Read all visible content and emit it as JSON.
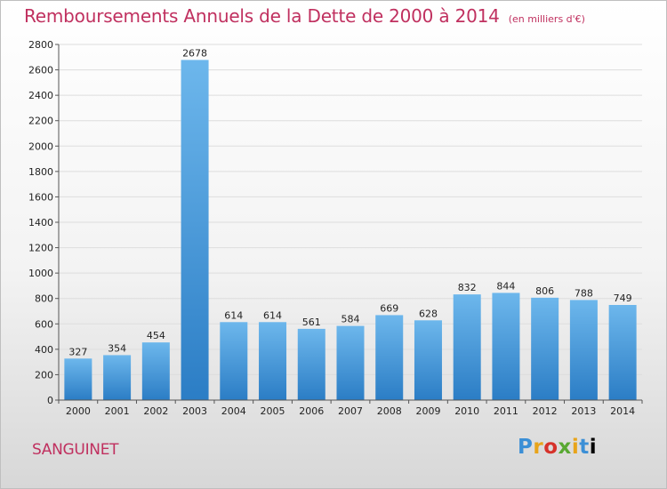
{
  "title": "Remboursements Annuels de la Dette de 2000 à 2014",
  "subtitle": "(en milliers d'€)",
  "town": "SANGUINET",
  "logo": "Proxiti",
  "chart_data": {
    "type": "bar",
    "title": "Remboursements Annuels de la Dette de 2000 à 2014",
    "subtitle": "(en milliers d'€)",
    "xlabel": "",
    "ylabel": "",
    "categories": [
      "2000",
      "2001",
      "2002",
      "2003",
      "2004",
      "2005",
      "2006",
      "2007",
      "2008",
      "2009",
      "2010",
      "2011",
      "2012",
      "2013",
      "2014"
    ],
    "values": [
      327,
      354,
      454,
      2678,
      614,
      614,
      561,
      584,
      669,
      628,
      832,
      844,
      806,
      788,
      749
    ],
    "ylim": [
      0,
      2800
    ],
    "yticks": [
      0,
      200,
      400,
      600,
      800,
      1000,
      1200,
      1400,
      1600,
      1800,
      2000,
      2200,
      2400,
      2600,
      2800
    ],
    "grid": true,
    "data_labels": true,
    "colors": {
      "bar_light": "#6db7ec",
      "bar_dark": "#2b7dc5",
      "grid": "#dddddd",
      "text_accent": "#c0305f"
    }
  }
}
